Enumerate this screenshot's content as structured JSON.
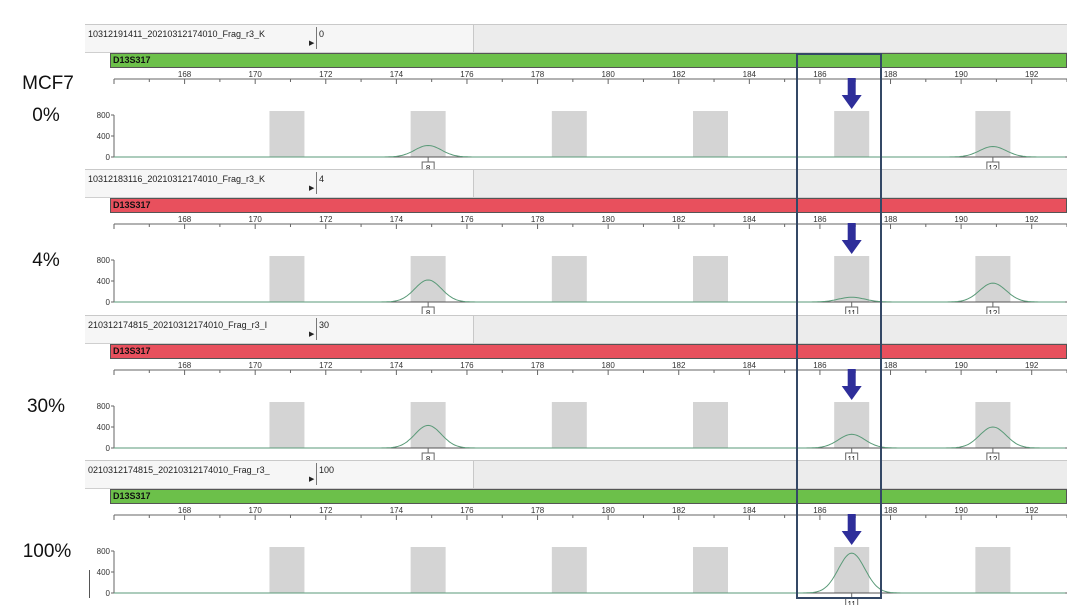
{
  "sample_group_label": "MCF7",
  "colors": {
    "locus_green": "#6cc04a",
    "locus_red": "#e8505d",
    "bin_gray": "#d4d4d4",
    "trace": "#5a9a78",
    "arrow": "#2e2e9a",
    "highlight_box": "#344866"
  },
  "icons": {
    "arrow": "down-arrow-icon"
  },
  "chart_data": [
    {
      "type": "line",
      "percent_label": "0%",
      "sample_name": "10312191411_20210312174010_Frag_r3_K",
      "sample_value": "0",
      "locus": "D13S317",
      "locus_status": "pass",
      "xlim": [
        166,
        193
      ],
      "xticks": [
        168,
        170,
        172,
        174,
        176,
        178,
        180,
        182,
        184,
        186,
        188,
        190,
        192
      ],
      "ylim": [
        0,
        800
      ],
      "yticks": [
        0,
        400,
        800
      ],
      "bins": [
        170.9,
        174.9,
        178.9,
        182.9,
        186.9,
        190.9
      ],
      "peaks": [
        {
          "x": 174.9,
          "height": 220,
          "allele": "8"
        },
        {
          "x": 190.9,
          "height": 200,
          "allele": "12"
        }
      ],
      "arrow_x": 186.9
    },
    {
      "type": "line",
      "percent_label": "4%",
      "sample_name": "10312183116_20210312174010_Frag_r3_K",
      "sample_value": "4",
      "locus": "D13S317",
      "locus_status": "fail",
      "xlim": [
        166,
        193
      ],
      "xticks": [
        168,
        170,
        172,
        174,
        176,
        178,
        180,
        182,
        184,
        186,
        188,
        190,
        192
      ],
      "ylim": [
        0,
        800
      ],
      "yticks": [
        0,
        400,
        800
      ],
      "bins": [
        170.9,
        174.9,
        178.9,
        182.9,
        186.9,
        190.9
      ],
      "peaks": [
        {
          "x": 174.9,
          "height": 420,
          "allele": "8"
        },
        {
          "x": 186.9,
          "height": 90,
          "allele": "11"
        },
        {
          "x": 190.9,
          "height": 360,
          "allele": "12"
        }
      ],
      "arrow_x": 186.9
    },
    {
      "type": "line",
      "percent_label": "30%",
      "sample_name": "210312174815_20210312174010_Frag_r3_I",
      "sample_value": "30",
      "locus": "D13S317",
      "locus_status": "fail",
      "xlim": [
        166,
        193
      ],
      "xticks": [
        168,
        170,
        172,
        174,
        176,
        178,
        180,
        182,
        184,
        186,
        188,
        190,
        192
      ],
      "ylim": [
        0,
        800
      ],
      "yticks": [
        0,
        400,
        800
      ],
      "bins": [
        170.9,
        174.9,
        178.9,
        182.9,
        186.9,
        190.9
      ],
      "peaks": [
        {
          "x": 174.9,
          "height": 430,
          "allele": "8"
        },
        {
          "x": 186.9,
          "height": 260,
          "allele": "11"
        },
        {
          "x": 190.9,
          "height": 400,
          "allele": "12"
        }
      ],
      "arrow_x": 186.9
    },
    {
      "type": "line",
      "percent_label": "100%",
      "sample_name": "0210312174815_20210312174010_Frag_r3_",
      "sample_value": "100",
      "locus": "D13S317",
      "locus_status": "pass",
      "xlim": [
        166,
        193
      ],
      "xticks": [
        168,
        170,
        172,
        174,
        176,
        178,
        180,
        182,
        184,
        186,
        188,
        190,
        192
      ],
      "ylim": [
        0,
        800
      ],
      "yticks": [
        0,
        400,
        800
      ],
      "bins": [
        170.9,
        174.9,
        178.9,
        182.9,
        186.9,
        190.9
      ],
      "peaks": [
        {
          "x": 186.9,
          "height": 760,
          "allele": "11"
        }
      ],
      "arrow_x": 186.9
    }
  ]
}
